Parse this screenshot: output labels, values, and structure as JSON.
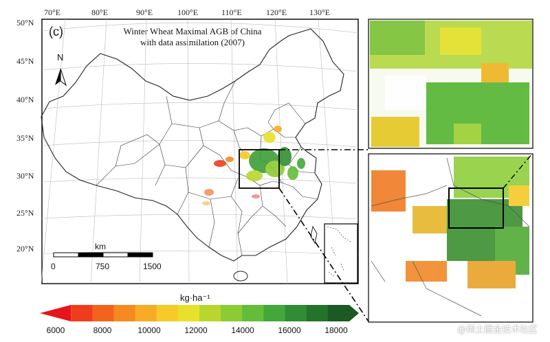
{
  "panel_label": "(c)",
  "title": {
    "line1": "Winter Wheat Maximal AGB of China",
    "line2": "with data assimilation (2007)"
  },
  "north_arrow": {
    "label": "N",
    "icon": "north-arrow-icon"
  },
  "longitude_ticks": [
    "70°E",
    "80°E",
    "90°E",
    "100°E",
    "110°E",
    "120°E",
    "130°E"
  ],
  "latitude_ticks": [
    "50°N",
    "45°N",
    "40°N",
    "35°N",
    "30°N",
    "25°N",
    "20°N"
  ],
  "scale_bar": {
    "unit": "km",
    "labels": [
      "0",
      "750",
      "1500"
    ]
  },
  "colorbar": {
    "unit": "kg·ha⁻¹",
    "tick_labels": [
      "6000",
      "8000",
      "10000",
      "12000",
      "14000",
      "16000",
      "18000"
    ],
    "colors": [
      "#e8141b",
      "#ee3d1c",
      "#f2641d",
      "#f58a20",
      "#f8ab24",
      "#f5cc27",
      "#e7e12c",
      "#b9d62f",
      "#8ccb33",
      "#63bd39",
      "#43a83a",
      "#2f8e33",
      "#24732b",
      "#1b5a22"
    ]
  },
  "watermark": "@稀土掘金技术社区"
}
